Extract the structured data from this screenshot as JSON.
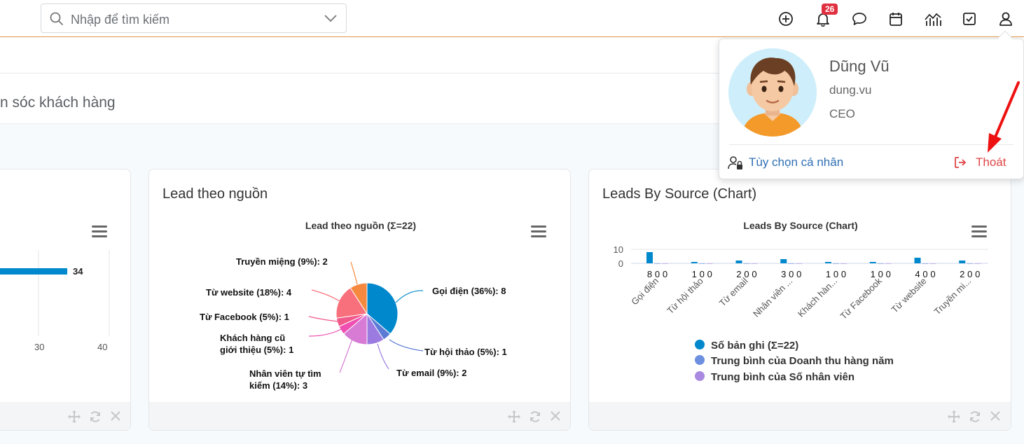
{
  "search": {
    "placeholder": "Nhập để tìm kiếm"
  },
  "topbar": {
    "icons": [
      "plus-circle-icon",
      "bell-icon",
      "chat-icon",
      "calendar-icon",
      "chart-icon",
      "checkbox-icon",
      "user-icon"
    ],
    "notification_count": "26"
  },
  "page": {
    "title": "n sóc khách hàng"
  },
  "card_left": {
    "bar_value": "34",
    "ticks": [
      "30",
      "40"
    ]
  },
  "card_pie": {
    "title": "Lead theo nguồn",
    "chart_title": "Lead theo nguồn (Σ=22)"
  },
  "card_bar": {
    "title": "Leads By Source (Chart)",
    "chart_title": "Leads By Source (Chart)",
    "legend": [
      "Số bản ghi (Σ=22)",
      "Trung bình của Doanh thu hàng năm",
      "Trung bình của Số nhân viên"
    ]
  },
  "profile": {
    "name": "Dũng Vũ",
    "username": "dung.vu",
    "role": "CEO",
    "options_label": "Tùy chọn cá nhân",
    "logout_label": "Thoát"
  },
  "colors": {
    "accent": "#0088cc",
    "logout": "#e04545",
    "link": "#2f6fb3",
    "topbar_border": "#e59a4a"
  },
  "chart_data": [
    {
      "type": "bar",
      "categories": [
        ""
      ],
      "values": [
        34
      ],
      "xticks": [
        "30",
        "40"
      ]
    },
    {
      "type": "pie",
      "title": "Lead theo nguồn (Σ=22)",
      "slices": [
        {
          "label": "Gọi điện",
          "value": 8,
          "percent": 36,
          "color": "#0088cc"
        },
        {
          "label": "Từ hội thảo",
          "value": 1,
          "percent": 5,
          "color": "#5b7bd5"
        },
        {
          "label": "Từ email",
          "value": 2,
          "percent": 9,
          "color": "#9b7be0"
        },
        {
          "label": "Nhân viên tự tìm kiếm",
          "value": 3,
          "percent": 14,
          "color": "#d77bd5"
        },
        {
          "label": "Khách hàng cũ giới thiệu",
          "value": 1,
          "percent": 5,
          "color": "#ee4fb0"
        },
        {
          "label": "Từ Facebook",
          "value": 1,
          "percent": 5,
          "color": "#f05a8a"
        },
        {
          "label": "Từ website",
          "value": 4,
          "percent": 18,
          "color": "#f8707c"
        },
        {
          "label": "Truyền miệng",
          "value": 2,
          "percent": 9,
          "color": "#f5893f"
        }
      ],
      "display_labels": [
        "Gọi điện (36%): 8",
        "Từ hội thảo (5%): 1",
        "Từ email (9%): 2",
        "Nhân viên tự tìm",
        "kiếm (14%): 3",
        "Khách hàng cũ",
        "giới thiệu (5%): 1",
        "Từ Facebook (5%): 1",
        "Từ website (18%): 4",
        "Truyền miệng (9%): 2"
      ]
    },
    {
      "type": "bar",
      "title": "Leads By Source (Chart)",
      "categories": [
        "Gọi điện",
        "Từ hội thảo",
        "Từ email",
        "Nhân viên ...",
        "Khách hàn...",
        "Từ Facebook",
        "Từ website",
        "Truyền mi..."
      ],
      "ylim": [
        0,
        10
      ],
      "yticks": [
        "10",
        "0"
      ],
      "series": [
        {
          "name": "Số bản ghi (Σ=22)",
          "values": [
            8,
            1,
            2,
            3,
            1,
            1,
            4,
            2
          ],
          "color": "#0088cc"
        },
        {
          "name": "Trung bình của Doanh thu hàng năm",
          "values": [
            0,
            0,
            0,
            0,
            0,
            0,
            0,
            0
          ],
          "color": "#6c8fe0"
        },
        {
          "name": "Trung bình của Số nhân viên",
          "values": [
            0,
            0,
            0,
            0,
            0,
            0,
            0,
            0
          ],
          "color": "#a98ae0"
        }
      ]
    }
  ]
}
